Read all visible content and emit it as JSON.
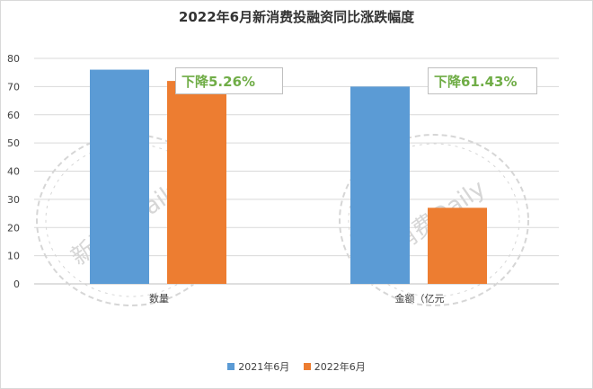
{
  "chart_data": {
    "type": "bar",
    "title": "2022年6月新消费投融资同比涨跌幅度",
    "categories": [
      "数量",
      "金额（亿元"
    ],
    "series": [
      {
        "name": "2021年6月",
        "values": [
          76,
          70
        ]
      },
      {
        "name": "2022年6月",
        "values": [
          72,
          27
        ]
      }
    ],
    "ylim": [
      0,
      80
    ],
    "yticks": [
      0,
      10,
      20,
      30,
      40,
      50,
      60,
      70,
      80
    ],
    "grid": true,
    "legend_position": "bottom",
    "annotations": [
      "下降5.26%",
      "下降61.43%"
    ]
  },
  "colors": {
    "series_2021": "#5b9bd5",
    "series_2022": "#ed7d31",
    "annotation_text": "#70ad47",
    "grid": "#d9d9d9",
    "watermark": "#d6d6d6"
  },
  "watermark": {
    "text": "新消费Daily"
  }
}
